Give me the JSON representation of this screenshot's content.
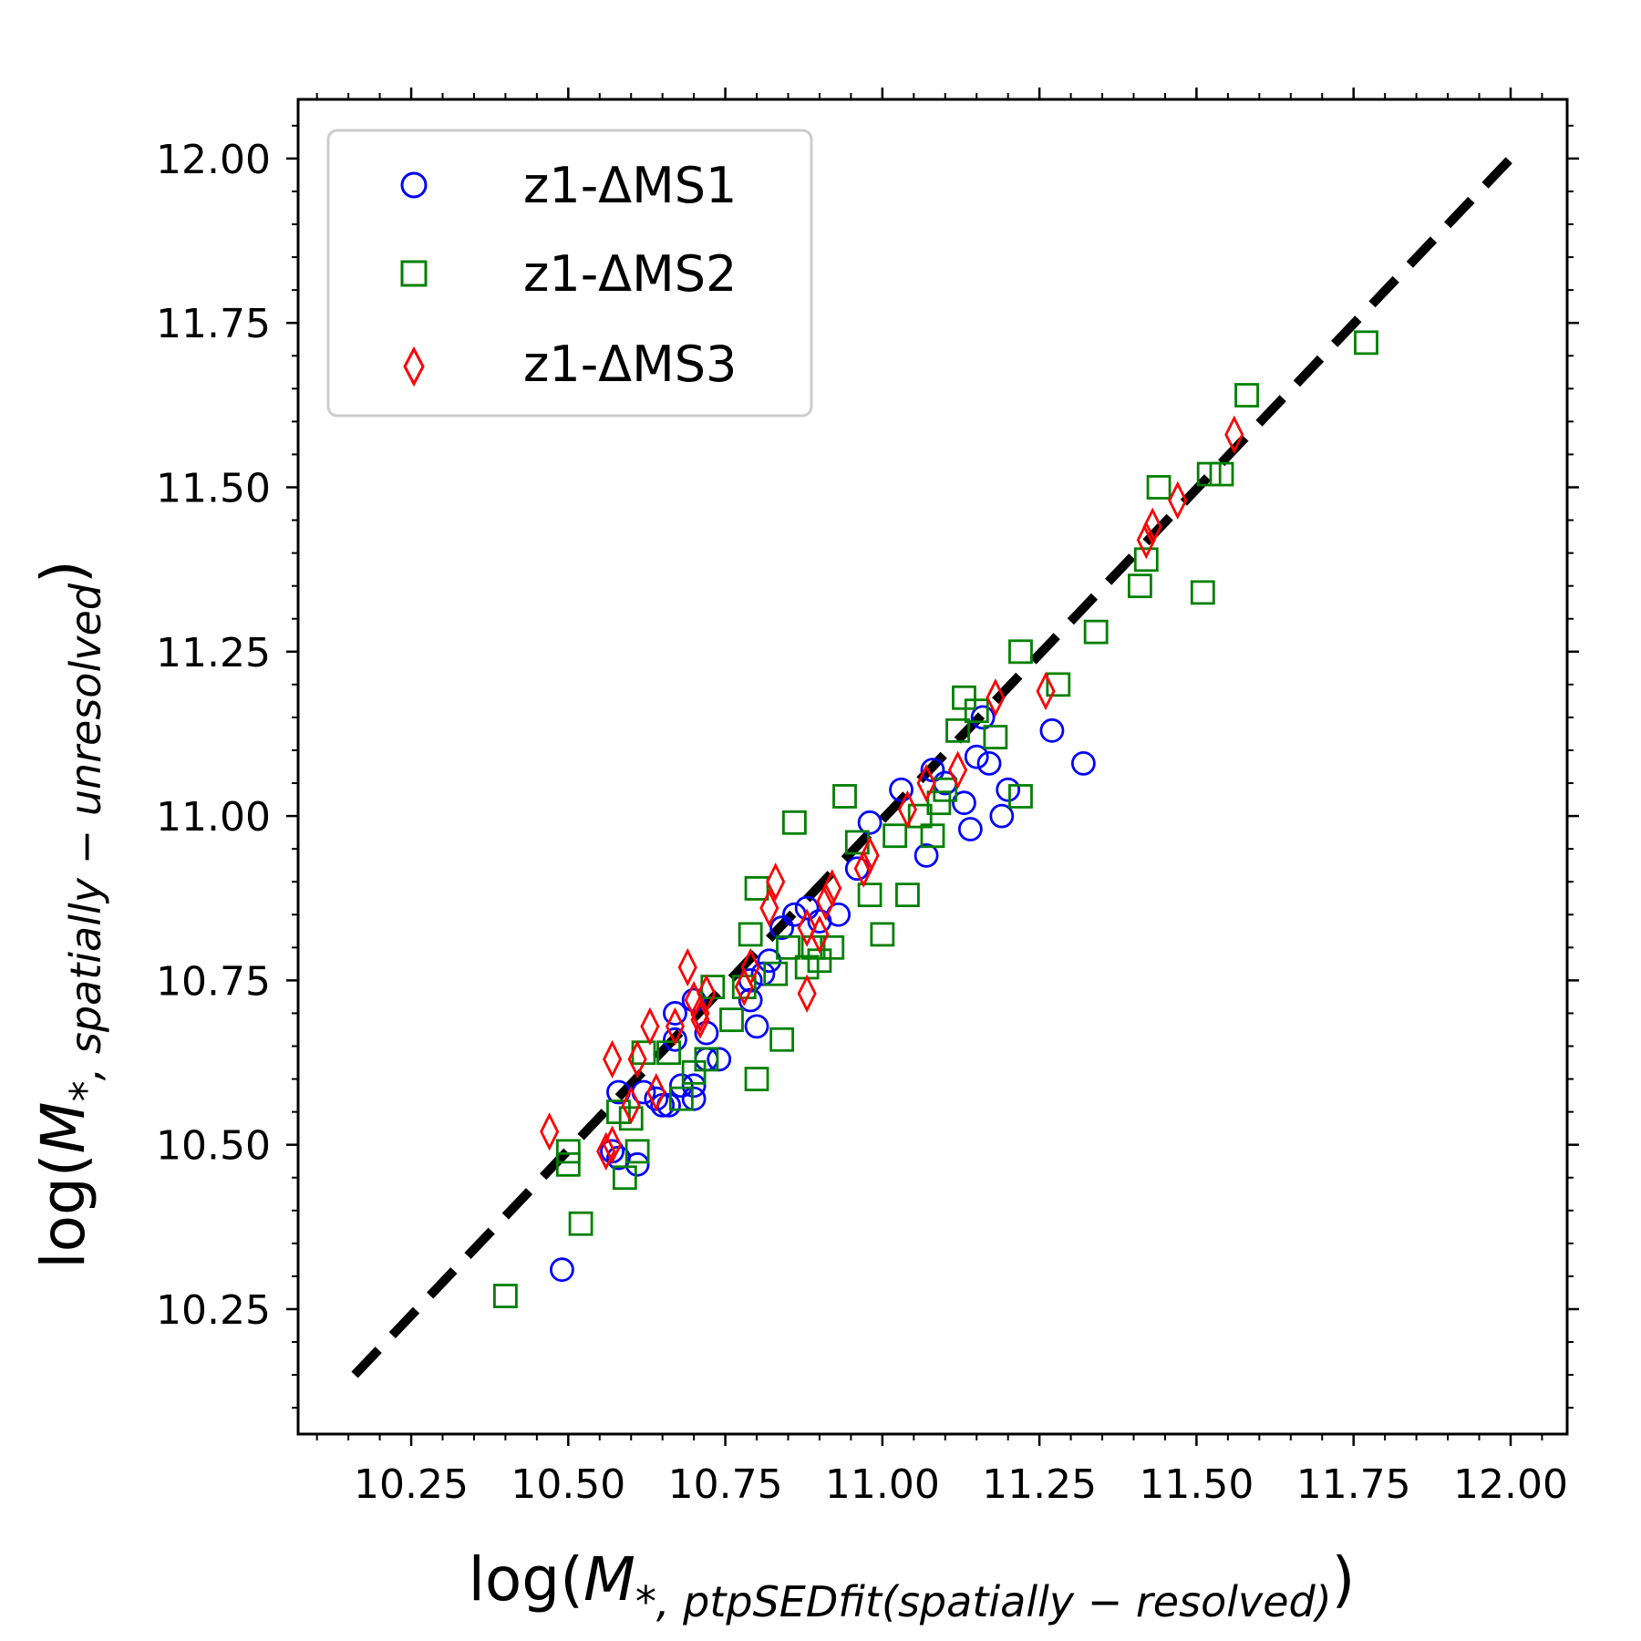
{
  "chart_data": {
    "type": "scatter",
    "xlabel": {
      "main": "log(",
      "math": "M",
      "sub": "*, ptpSEDfit(spatially − resolved)",
      "close": ")"
    },
    "ylabel": {
      "main": "log(",
      "math": "M",
      "sub": "*, spatially − unresolved",
      "close": ")"
    },
    "xlim": [
      10.07,
      12.09
    ],
    "ylim": [
      10.06,
      12.09
    ],
    "xticks": [
      10.25,
      10.5,
      10.75,
      11.0,
      11.25,
      11.5,
      11.75,
      12.0
    ],
    "xtick_labels": [
      "10.25",
      "10.50",
      "10.75",
      "11.00",
      "11.25",
      "11.50",
      "11.75",
      "12.00"
    ],
    "yticks": [
      10.25,
      10.5,
      10.75,
      11.0,
      11.25,
      11.5,
      11.75,
      12.0
    ],
    "ytick_labels": [
      "10.25",
      "10.50",
      "10.75",
      "11.00",
      "11.25",
      "11.50",
      "11.75",
      "12.00"
    ],
    "grid": false,
    "legend_position": "top-left",
    "reference_line": {
      "style": "dashed",
      "color": "#000000",
      "points": [
        [
          10.16,
          10.15
        ],
        [
          12.0,
          12.0
        ]
      ]
    },
    "series": [
      {
        "name": "z1-ΔMS1",
        "marker": "circle",
        "color": "#0000ff",
        "points": [
          [
            10.49,
            10.31
          ],
          [
            10.57,
            10.49
          ],
          [
            10.58,
            10.48
          ],
          [
            10.61,
            10.47
          ],
          [
            10.58,
            10.58
          ],
          [
            10.62,
            10.58
          ],
          [
            10.64,
            10.57
          ],
          [
            10.65,
            10.56
          ],
          [
            10.66,
            10.56
          ],
          [
            10.68,
            10.59
          ],
          [
            10.7,
            10.57
          ],
          [
            10.7,
            10.59
          ],
          [
            10.67,
            10.66
          ],
          [
            10.67,
            10.7
          ],
          [
            10.7,
            10.72
          ],
          [
            10.72,
            10.67
          ],
          [
            10.72,
            10.63
          ],
          [
            10.74,
            10.63
          ],
          [
            10.79,
            10.72
          ],
          [
            10.79,
            10.75
          ],
          [
            10.8,
            10.68
          ],
          [
            10.81,
            10.76
          ],
          [
            10.82,
            10.78
          ],
          [
            10.84,
            10.83
          ],
          [
            10.86,
            10.85
          ],
          [
            10.88,
            10.86
          ],
          [
            10.9,
            10.84
          ],
          [
            10.93,
            10.85
          ],
          [
            10.96,
            10.92
          ],
          [
            10.98,
            10.99
          ],
          [
            11.07,
            10.94
          ],
          [
            11.03,
            11.04
          ],
          [
            11.08,
            11.07
          ],
          [
            11.1,
            11.05
          ],
          [
            11.13,
            11.02
          ],
          [
            11.14,
            10.98
          ],
          [
            11.15,
            11.09
          ],
          [
            11.16,
            11.15
          ],
          [
            11.17,
            11.08
          ],
          [
            11.19,
            11.0
          ],
          [
            11.2,
            11.04
          ],
          [
            11.27,
            11.13
          ],
          [
            11.32,
            11.08
          ]
        ]
      },
      {
        "name": "z1-ΔMS2",
        "marker": "square",
        "color": "#008000",
        "points": [
          [
            10.4,
            10.27
          ],
          [
            10.5,
            10.49
          ],
          [
            10.5,
            10.47
          ],
          [
            10.52,
            10.38
          ],
          [
            10.58,
            10.55
          ],
          [
            10.59,
            10.45
          ],
          [
            10.6,
            10.54
          ],
          [
            10.61,
            10.49
          ],
          [
            10.62,
            10.64
          ],
          [
            10.66,
            10.64
          ],
          [
            10.68,
            10.57
          ],
          [
            10.7,
            10.61
          ],
          [
            10.72,
            10.63
          ],
          [
            10.73,
            10.74
          ],
          [
            10.76,
            10.69
          ],
          [
            10.78,
            10.74
          ],
          [
            10.79,
            10.82
          ],
          [
            10.8,
            10.6
          ],
          [
            10.8,
            10.89
          ],
          [
            10.83,
            10.76
          ],
          [
            10.84,
            10.66
          ],
          [
            10.85,
            10.8
          ],
          [
            10.86,
            10.99
          ],
          [
            10.88,
            10.77
          ],
          [
            10.89,
            10.8
          ],
          [
            10.9,
            10.78
          ],
          [
            10.92,
            10.8
          ],
          [
            10.94,
            11.03
          ],
          [
            10.96,
            10.96
          ],
          [
            10.98,
            10.88
          ],
          [
            11.0,
            10.82
          ],
          [
            11.02,
            10.97
          ],
          [
            11.04,
            10.88
          ],
          [
            11.06,
            11.0
          ],
          [
            11.08,
            10.97
          ],
          [
            11.09,
            11.02
          ],
          [
            11.1,
            11.04
          ],
          [
            11.12,
            11.13
          ],
          [
            11.13,
            11.18
          ],
          [
            11.15,
            11.16
          ],
          [
            11.18,
            11.12
          ],
          [
            11.22,
            11.03
          ],
          [
            11.22,
            11.25
          ],
          [
            11.28,
            11.2
          ],
          [
            11.34,
            11.28
          ],
          [
            11.41,
            11.35
          ],
          [
            11.42,
            11.39
          ],
          [
            11.44,
            11.5
          ],
          [
            11.51,
            11.34
          ],
          [
            11.52,
            11.52
          ],
          [
            11.54,
            11.52
          ],
          [
            11.58,
            11.64
          ],
          [
            11.77,
            11.72
          ]
        ]
      },
      {
        "name": "z1-ΔMS3",
        "marker": "diamond",
        "color": "#ff0000",
        "points": [
          [
            10.47,
            10.52
          ],
          [
            10.56,
            10.49
          ],
          [
            10.57,
            10.5
          ],
          [
            10.57,
            10.63
          ],
          [
            10.6,
            10.56
          ],
          [
            10.61,
            10.63
          ],
          [
            10.63,
            10.68
          ],
          [
            10.64,
            10.58
          ],
          [
            10.67,
            10.68
          ],
          [
            10.69,
            10.77
          ],
          [
            10.7,
            10.72
          ],
          [
            10.71,
            10.7
          ],
          [
            10.71,
            10.69
          ],
          [
            10.72,
            10.73
          ],
          [
            10.78,
            10.74
          ],
          [
            10.79,
            10.77
          ],
          [
            10.82,
            10.86
          ],
          [
            10.83,
            10.9
          ],
          [
            10.88,
            10.83
          ],
          [
            10.88,
            10.73
          ],
          [
            10.9,
            10.82
          ],
          [
            10.91,
            10.87
          ],
          [
            10.92,
            10.89
          ],
          [
            10.97,
            10.92
          ],
          [
            10.98,
            10.94
          ],
          [
            11.04,
            11.01
          ],
          [
            11.07,
            11.05
          ],
          [
            11.12,
            11.07
          ],
          [
            11.18,
            11.18
          ],
          [
            11.26,
            11.19
          ],
          [
            11.42,
            11.42
          ],
          [
            11.43,
            11.44
          ],
          [
            11.47,
            11.48
          ],
          [
            11.56,
            11.58
          ]
        ]
      }
    ]
  }
}
